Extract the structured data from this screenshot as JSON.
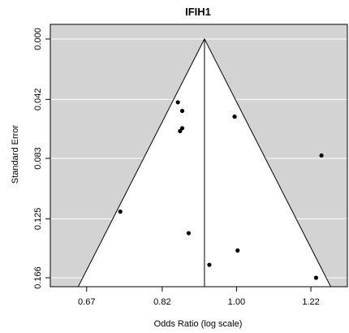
{
  "chart_data": {
    "type": "scatter",
    "title": "IFIH1",
    "xlabel": "Odds Ratio (log scale)",
    "ylabel": "Standard Error",
    "x_scale": "log",
    "xlim": [
      0.608,
      1.345
    ],
    "ylim": [
      0.0,
      0.166
    ],
    "y_reversed": true,
    "x_ticks": [
      0.67,
      0.82,
      1.0,
      1.22
    ],
    "x_tick_labels": [
      "0.67",
      "0.82",
      "1.00",
      "1.22"
    ],
    "y_ticks": [
      0.0,
      0.042,
      0.083,
      0.125,
      0.166
    ],
    "y_tick_labels": [
      "0.000",
      "0.042",
      "0.083",
      "0.125",
      "0.166"
    ],
    "pooled_estimate": 0.918,
    "funnel_z": 1.96,
    "grid": true,
    "colors": {
      "background": "#d3d3d3",
      "funnel": "#ffffff",
      "grid": "#ffffff",
      "points": "#000000",
      "lines": "#000000"
    },
    "points": [
      {
        "x": 0.855,
        "y": 0.044
      },
      {
        "x": 0.865,
        "y": 0.05
      },
      {
        "x": 0.865,
        "y": 0.062
      },
      {
        "x": 0.86,
        "y": 0.064
      },
      {
        "x": 0.995,
        "y": 0.054
      },
      {
        "x": 1.255,
        "y": 0.081
      },
      {
        "x": 0.733,
        "y": 0.12
      },
      {
        "x": 0.88,
        "y": 0.135
      },
      {
        "x": 1.003,
        "y": 0.147
      },
      {
        "x": 0.93,
        "y": 0.157
      },
      {
        "x": 1.237,
        "y": 0.166
      }
    ]
  }
}
